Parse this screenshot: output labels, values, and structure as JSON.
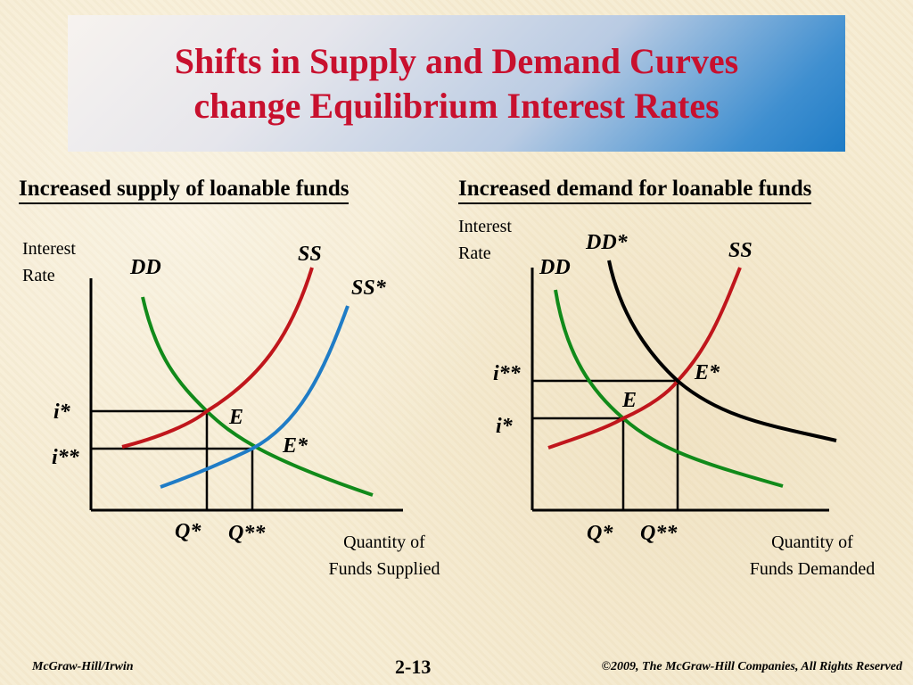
{
  "title": {
    "line1": "Shifts in Supply and Demand Curves",
    "line2": "change Equilibrium Interest Rates"
  },
  "colors": {
    "title_text": "#c8102e",
    "supply_curve": "#c0161c",
    "shifted_supply_curve": "#1f7cc6",
    "demand_curve": "#118a1a",
    "shifted_demand_curve": "#000000"
  },
  "left_panel": {
    "heading": "Increased supply of loanable funds",
    "y_axis_label_line1": "Interest",
    "y_axis_label_line2": "Rate",
    "x_axis_label_line1": "Quantity of",
    "x_axis_label_line2": "Funds Supplied",
    "curves": {
      "demand": "DD",
      "supply": "SS",
      "shifted_supply": "SS*"
    },
    "points": {
      "equilibrium": "E",
      "new_equilibrium": "E*"
    },
    "rates": {
      "initial": "i*",
      "new": "i**"
    },
    "quantities": {
      "initial": "Q*",
      "new": "Q**"
    }
  },
  "right_panel": {
    "heading": "Increased demand for loanable funds",
    "y_axis_label_line1": "Interest",
    "y_axis_label_line2": "Rate",
    "x_axis_label_line1": "Quantity of",
    "x_axis_label_line2": "Funds Demanded",
    "curves": {
      "demand": "DD",
      "shifted_demand": "DD*",
      "supply": "SS"
    },
    "points": {
      "equilibrium": "E",
      "new_equilibrium": "E*"
    },
    "rates": {
      "new": "i**",
      "initial": "i*"
    },
    "quantities": {
      "initial": "Q*",
      "new": "Q**"
    }
  },
  "footer": {
    "publisher": "McGraw-Hill/Irwin",
    "page": "2-13",
    "copyright": "©2009, The McGraw-Hill Companies, All Rights Reserved"
  }
}
